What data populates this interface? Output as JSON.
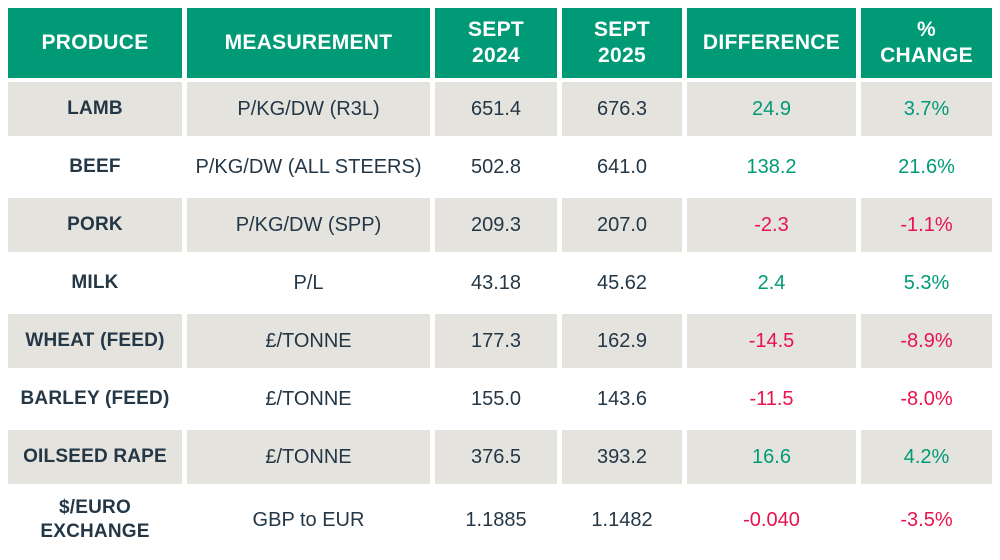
{
  "table": {
    "columns": {
      "produce": "PRODUCE",
      "measurement": "MEASUREMENT",
      "sept2024": "SEPT\n2024",
      "sept2025": "SEPT\n2025",
      "difference": "DIFFERENCE",
      "pct_change": "%\nCHANGE"
    },
    "rows": [
      {
        "produce": "LAMB",
        "measurement": "P/KG/DW (R3L)",
        "sept2024": "651.4",
        "sept2025": "676.3",
        "difference": "24.9",
        "pct_change": "3.7%",
        "trend": "up"
      },
      {
        "produce": "BEEF",
        "measurement": "P/KG/DW (ALL STEERS)",
        "sept2024": "502.8",
        "sept2025": "641.0",
        "difference": "138.2",
        "pct_change": "21.6%",
        "trend": "up"
      },
      {
        "produce": "PORK",
        "measurement": "P/KG/DW (SPP)",
        "sept2024": "209.3",
        "sept2025": "207.0",
        "difference": "-2.3",
        "pct_change": "-1.1%",
        "trend": "down"
      },
      {
        "produce": "MILK",
        "measurement": "P/L",
        "sept2024": "43.18",
        "sept2025": "45.62",
        "difference": "2.4",
        "pct_change": "5.3%",
        "trend": "up"
      },
      {
        "produce": "WHEAT (FEED)",
        "measurement": "£/TONNE",
        "sept2024": "177.3",
        "sept2025": "162.9",
        "difference": "-14.5",
        "pct_change": "-8.9%",
        "trend": "down"
      },
      {
        "produce": "BARLEY (FEED)",
        "measurement": "£/TONNE",
        "sept2024": "155.0",
        "sept2025": "143.6",
        "difference": "-11.5",
        "pct_change": "-8.0%",
        "trend": "down"
      },
      {
        "produce": "OILSEED RAPE",
        "measurement": "£/TONNE",
        "sept2024": "376.5",
        "sept2025": "393.2",
        "difference": "16.6",
        "pct_change": "4.2%",
        "trend": "up"
      },
      {
        "produce": "$/EURO\nEXCHANGE",
        "measurement": "GBP to EUR",
        "sept2024": "1.1885",
        "sept2025": "1.1482",
        "difference": "-0.040",
        "pct_change": "-3.5%",
        "trend": "down"
      }
    ]
  },
  "colors": {
    "header_bg": "#009B76",
    "row_alt_bg": "#E5E3DE",
    "text_dark": "#243746",
    "positive": "#009B76",
    "negative": "#E8124D"
  }
}
